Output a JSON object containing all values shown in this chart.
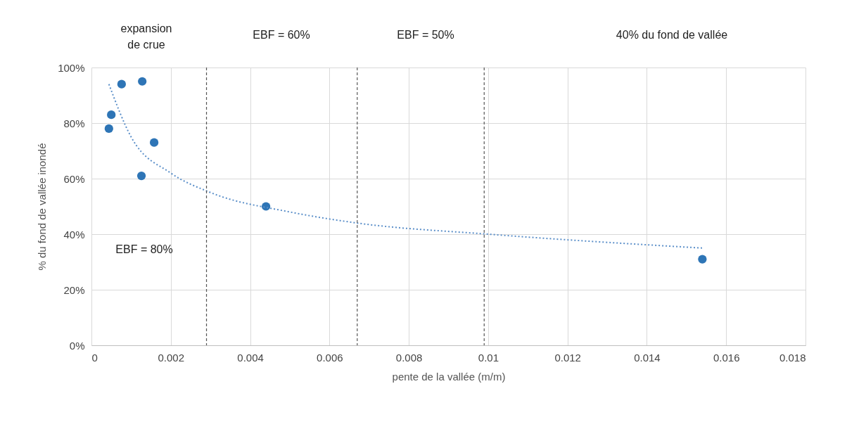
{
  "chart_data": {
    "type": "scatter",
    "xlabel": "pente de la vallée (m/m)",
    "ylabel": "% du fond de vallée inondé",
    "series": [
      {
        "color": "#2e75b6",
        "x": [
          0.00044,
          0.0005,
          0.00076,
          0.00128,
          0.00158,
          0.00126,
          0.0044,
          0.0154
        ],
        "values": [
          78,
          83,
          94,
          95,
          73,
          61,
          50,
          31
        ]
      },
      {
        "type": "line",
        "color": "#5b8fc9",
        "line_style": "dotted",
        "marker": "none",
        "x": [
          0.00044,
          0.001,
          0.002,
          0.003,
          0.005,
          0.0067,
          0.01,
          0.0154
        ],
        "values": [
          94,
          75,
          62,
          55,
          48,
          44,
          40,
          35
        ]
      }
    ],
    "xlim": [
      0,
      0.018
    ],
    "xticks": [
      0,
      0.002,
      0.004,
      0.006,
      0.008,
      0.01,
      0.012,
      0.014,
      0.016,
      0.018
    ],
    "ylim": [
      0,
      100
    ],
    "yticks": [
      {
        "value": 0,
        "label": "0%"
      },
      {
        "value": 20,
        "label": "20%"
      },
      {
        "value": 40,
        "label": "40%"
      },
      {
        "value": 60,
        "label": "60%"
      },
      {
        "value": 80,
        "label": "80%"
      },
      {
        "value": 100,
        "label": "100%"
      }
    ],
    "ref_lines": [
      {
        "axis": "x",
        "value": 0.0029,
        "color": "#555555",
        "line_style": "dashed"
      },
      {
        "axis": "x",
        "value": 0.0067,
        "color": "#555555",
        "line_style": "dashed"
      },
      {
        "axis": "x",
        "value": 0.0099,
        "color": "#555555",
        "line_style": "dashed"
      }
    ],
    "annotations": [
      "expansion de crue",
      "EBF = 60%",
      "EBF = 50%",
      "40% du fond de vallée",
      "EBF = 80%"
    ],
    "grid": true,
    "marker": "circle"
  }
}
